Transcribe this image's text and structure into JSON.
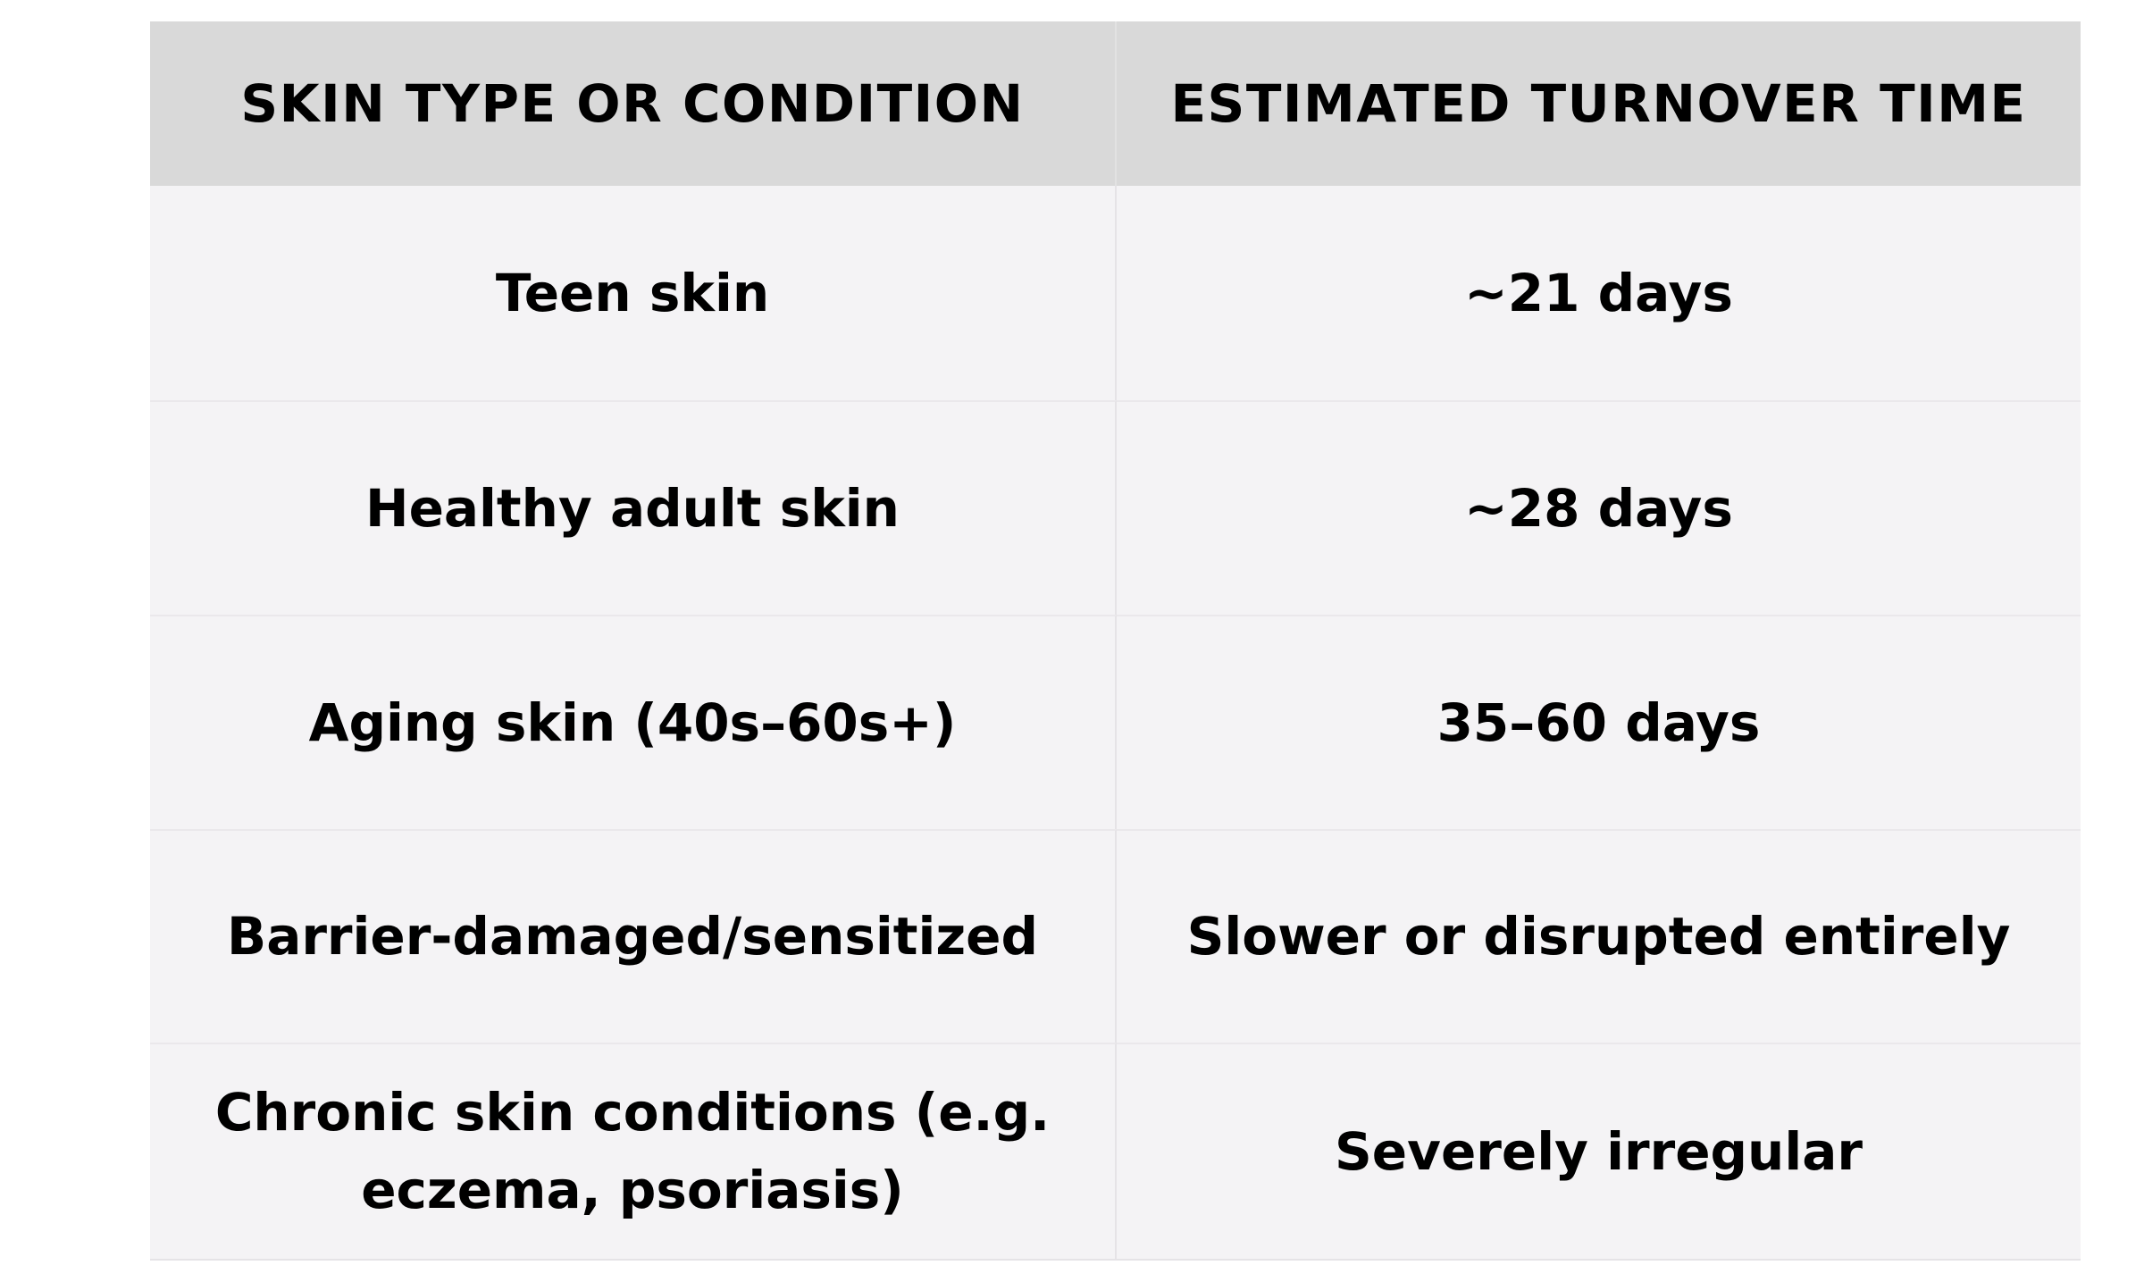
{
  "chart_data": {
    "type": "table",
    "columns": [
      "SKIN TYPE OR CONDITION",
      "ESTIMATED TURNOVER TIME"
    ],
    "rows": [
      [
        "Teen skin",
        "~21 days"
      ],
      [
        "Healthy adult skin",
        "~28 days"
      ],
      [
        "Aging skin (40s–60s+)",
        "35–60 days"
      ],
      [
        "Barrier-damaged/sensitized",
        "Slower or disrupted entirely"
      ],
      [
        "Chronic skin conditions (e.g. eczema, psoriasis)",
        "Severely irregular"
      ]
    ],
    "layout": {
      "header_position": "top",
      "grid": "subtle row and column dividers",
      "alignment": "center"
    }
  },
  "colors": {
    "page_bg": "#ffffff",
    "header_bg": "#d9d9d9",
    "cell_bg": "#f4f3f5",
    "divider": "#e5e3e6",
    "text": "#000000"
  }
}
